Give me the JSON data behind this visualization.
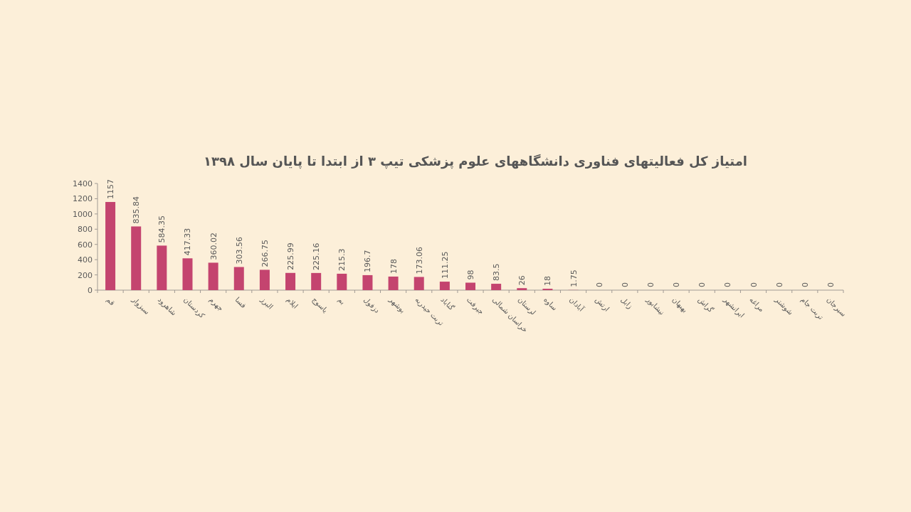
{
  "chart_data": {
    "type": "bar",
    "title": "امتیاز کل فعالیتهای فناوری دانشگاههای علوم پزشکی تیپ ۳ از ابتدا تا پایان سال ۱۳۹۸",
    "categories": [
      "قم",
      "سبزوار",
      "شاهرود",
      "کردستان",
      "جهرم",
      "فسا",
      "البرز",
      "ایلام",
      "یاسوج",
      "بم",
      "دزفول",
      "بوشهر",
      "تربت حیدریه",
      "گناباد",
      "جیرفت",
      "خراسان شمالی",
      "لرستان",
      "ساوه",
      "آبادان",
      "ارتش",
      "زابل",
      "نیشابور",
      "بهبهان",
      "گراش",
      "ایرانشهر",
      "مراغه",
      "شوشتر",
      "تربت جام",
      "سیرجان"
    ],
    "values": [
      1157,
      835.84,
      584.35,
      417.33,
      360.02,
      303.56,
      266.75,
      225.99,
      225.16,
      215.3,
      196.7,
      178,
      173.06,
      111.25,
      98,
      83.5,
      26,
      18,
      1.75,
      0,
      0,
      0,
      0,
      0,
      0,
      0,
      0,
      0,
      0
    ],
    "color": "#c4446f",
    "ylim": [
      0,
      1400
    ],
    "yticks": [
      0,
      200,
      400,
      600,
      800,
      1000,
      1200,
      1400
    ],
    "data_labels": true
  }
}
